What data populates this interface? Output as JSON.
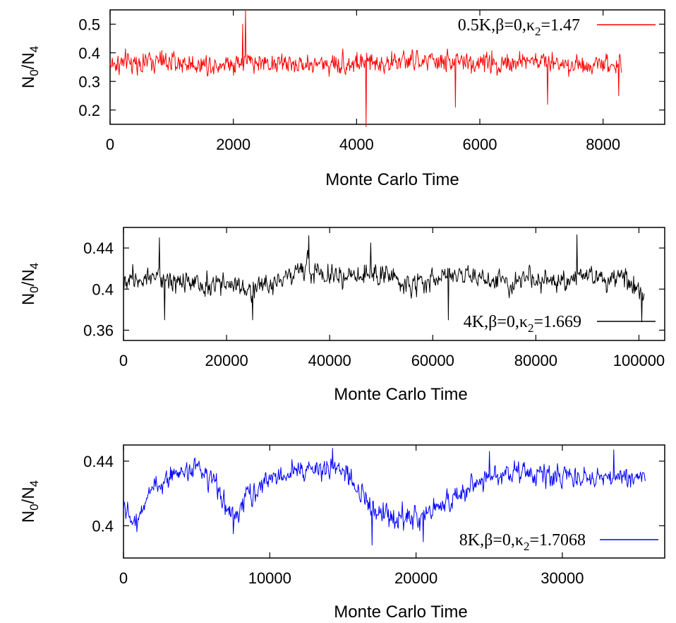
{
  "chart_data": [
    {
      "type": "line",
      "xlabel": "Monte Carlo Time",
      "ylabel": {
        "base": "N",
        "sub1": "0",
        "sep": "/",
        "base2": "N",
        "sub2": "4"
      },
      "xlim": [
        0,
        9000
      ],
      "ylim": [
        0.15,
        0.55
      ],
      "xticks": [
        0,
        2000,
        4000,
        6000,
        8000
      ],
      "xtick_labels": [
        "0",
        "2000",
        "4000",
        "6000",
        "8000"
      ],
      "yticks": [
        0.2,
        0.3,
        0.4,
        0.5
      ],
      "ytick_labels": [
        "0.2",
        "0.3",
        "0.4",
        "0.5"
      ],
      "grid": false,
      "legend_position": "top-right",
      "series": [
        {
          "name": {
            "pre": "0.5K,β=0,κ",
            "sub": "2",
            "post": "=1.47"
          },
          "color": "#ff0000",
          "x_end": 8300,
          "samples": 900,
          "mean": 0.365,
          "noise_amplitude": 0.045,
          "x": [
            0,
            700,
            1500,
            2200,
            3000,
            4150,
            5000,
            6000,
            7000,
            7500,
            8300
          ],
          "y": [
            0.36,
            0.37,
            0.36,
            0.37,
            0.36,
            0.365,
            0.37,
            0.365,
            0.37,
            0.36,
            0.365
          ],
          "spikes": [
            [
              2200,
              0.55
            ],
            [
              4150,
              0.14
            ],
            [
              2150,
              0.5
            ],
            [
              5600,
              0.21
            ],
            [
              7100,
              0.22
            ],
            [
              8250,
              0.25
            ]
          ]
        }
      ]
    },
    {
      "type": "line",
      "xlabel": "Monte Carlo Time",
      "ylabel": {
        "base": "N",
        "sub1": "0",
        "sep": "/",
        "base2": "N",
        "sub2": "4"
      },
      "xlim": [
        0,
        105000
      ],
      "ylim": [
        0.35,
        0.46
      ],
      "xticks": [
        0,
        20000,
        40000,
        60000,
        80000,
        100000
      ],
      "xtick_labels": [
        "0",
        "20000",
        "40000",
        "60000",
        "80000",
        "100000"
      ],
      "yticks": [
        0.36,
        0.4,
        0.44
      ],
      "ytick_labels": [
        "0.36",
        "0.4",
        "0.44"
      ],
      "grid": false,
      "legend_position": "bottom-right",
      "series": [
        {
          "name": {
            "pre": "4K,β=0,κ",
            "sub": "2",
            "post": "=1.669"
          },
          "color": "#000000",
          "x_end": 101000,
          "samples": 900,
          "mean": 0.41,
          "noise_amplitude": 0.013,
          "x": [
            0,
            5000,
            10000,
            15000,
            20000,
            25000,
            30000,
            35000,
            40000,
            45000,
            50000,
            55000,
            60000,
            65000,
            70000,
            75000,
            80000,
            85000,
            90000,
            95000,
            101000
          ],
          "y": [
            0.41,
            0.415,
            0.41,
            0.4,
            0.405,
            0.4,
            0.41,
            0.42,
            0.415,
            0.41,
            0.415,
            0.405,
            0.41,
            0.415,
            0.41,
            0.405,
            0.41,
            0.405,
            0.415,
            0.41,
            0.4
          ],
          "spikes": [
            [
              7000,
              0.45
            ],
            [
              25000,
              0.37
            ],
            [
              36000,
              0.452
            ],
            [
              63000,
              0.37
            ],
            [
              88000,
              0.453
            ],
            [
              100500,
              0.368
            ],
            [
              8000,
              0.37
            ],
            [
              48000,
              0.445
            ]
          ]
        }
      ]
    },
    {
      "type": "line",
      "xlabel": "Monte Carlo Time",
      "ylabel": {
        "base": "N",
        "sub1": "0",
        "sep": "/",
        "base2": "N",
        "sub2": "4"
      },
      "xlim": [
        0,
        37000
      ],
      "ylim": [
        0.38,
        0.45
      ],
      "xticks": [
        0,
        10000,
        20000,
        30000
      ],
      "xtick_labels": [
        "0",
        "10000",
        "20000",
        "30000"
      ],
      "yticks": [
        0.4,
        0.44
      ],
      "ytick_labels": [
        "0.4",
        "0.44"
      ],
      "grid": false,
      "legend_position": "bottom-right",
      "series": [
        {
          "name": {
            "pre": "8K,β=0,κ",
            "sub": "2",
            "post": "=1.7068"
          },
          "color": "#0000ff",
          "x_end": 35700,
          "samples": 900,
          "mean": 0.42,
          "noise_amplitude": 0.008,
          "x": [
            0,
            700,
            1500,
            2500,
            4000,
            5000,
            6000,
            7500,
            8500,
            10000,
            12000,
            14000,
            15500,
            17000,
            18500,
            20000,
            21500,
            23000,
            24500,
            26000,
            28000,
            30000,
            32000,
            34000,
            35700
          ],
          "y": [
            0.41,
            0.402,
            0.415,
            0.427,
            0.434,
            0.436,
            0.428,
            0.405,
            0.418,
            0.43,
            0.434,
            0.436,
            0.43,
            0.41,
            0.405,
            0.405,
            0.412,
            0.418,
            0.43,
            0.432,
            0.432,
            0.431,
            0.43,
            0.431,
            0.43
          ],
          "spikes": [
            [
              14300,
              0.448
            ],
            [
              25000,
              0.446
            ],
            [
              33500,
              0.447
            ],
            [
              17000,
              0.388
            ],
            [
              20500,
              0.39
            ],
            [
              7500,
              0.395
            ]
          ]
        }
      ]
    }
  ]
}
